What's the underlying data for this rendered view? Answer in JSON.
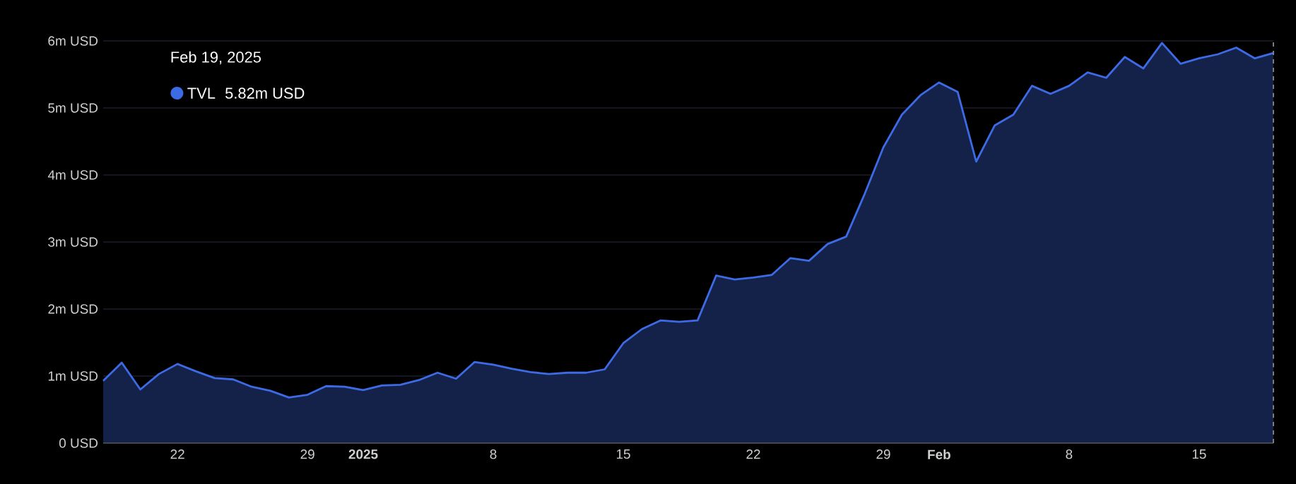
{
  "chart_data": {
    "type": "area",
    "x": [
      "2024-12-18",
      "2024-12-19",
      "2024-12-20",
      "2024-12-21",
      "2024-12-22",
      "2024-12-23",
      "2024-12-24",
      "2024-12-25",
      "2024-12-26",
      "2024-12-27",
      "2024-12-28",
      "2024-12-29",
      "2024-12-30",
      "2024-12-31",
      "2025-01-01",
      "2025-01-02",
      "2025-01-03",
      "2025-01-04",
      "2025-01-05",
      "2025-01-06",
      "2025-01-07",
      "2025-01-08",
      "2025-01-09",
      "2025-01-10",
      "2025-01-11",
      "2025-01-12",
      "2025-01-13",
      "2025-01-14",
      "2025-01-15",
      "2025-01-16",
      "2025-01-17",
      "2025-01-18",
      "2025-01-19",
      "2025-01-20",
      "2025-01-21",
      "2025-01-22",
      "2025-01-23",
      "2025-01-24",
      "2025-01-25",
      "2025-01-26",
      "2025-01-27",
      "2025-01-28",
      "2025-01-29",
      "2025-01-30",
      "2025-01-31",
      "2025-02-01",
      "2025-02-02",
      "2025-02-03",
      "2025-02-04",
      "2025-02-05",
      "2025-02-06",
      "2025-02-07",
      "2025-02-08",
      "2025-02-09",
      "2025-02-10",
      "2025-02-11",
      "2025-02-12",
      "2025-02-13",
      "2025-02-14",
      "2025-02-15",
      "2025-02-16",
      "2025-02-17",
      "2025-02-18",
      "2025-02-19"
    ],
    "series": [
      {
        "name": "TVL",
        "color": "#3d6be6",
        "values": [
          0.93,
          1.2,
          0.8,
          1.03,
          1.18,
          1.07,
          0.97,
          0.95,
          0.84,
          0.78,
          0.68,
          0.72,
          0.85,
          0.84,
          0.79,
          0.86,
          0.87,
          0.94,
          1.05,
          0.96,
          1.21,
          1.17,
          1.11,
          1.06,
          1.03,
          1.05,
          1.05,
          1.1,
          1.49,
          1.7,
          1.83,
          1.81,
          1.83,
          2.5,
          2.44,
          2.47,
          2.51,
          2.76,
          2.72,
          2.97,
          3.08,
          3.72,
          4.41,
          4.9,
          5.19,
          5.38,
          5.24,
          4.2,
          4.74,
          4.9,
          5.33,
          5.21,
          5.33,
          5.53,
          5.45,
          5.76,
          5.59,
          5.97,
          5.66,
          5.74,
          5.8,
          5.9,
          5.74,
          5.82
        ]
      }
    ],
    "xlim": [
      "2024-12-18",
      "2025-02-19"
    ],
    "xticks": [
      {
        "value": "2024-12-22",
        "label": "22"
      },
      {
        "value": "2024-12-29",
        "label": "29"
      },
      {
        "value": "2025-01-01",
        "label": "2025"
      },
      {
        "value": "2025-01-08",
        "label": "8"
      },
      {
        "value": "2025-01-15",
        "label": "15"
      },
      {
        "value": "2025-01-22",
        "label": "22"
      },
      {
        "value": "2025-01-29",
        "label": "29"
      },
      {
        "value": "2025-02-01",
        "label": "Feb"
      },
      {
        "value": "2025-02-08",
        "label": "8"
      },
      {
        "value": "2025-02-15",
        "label": "15"
      }
    ],
    "ylim": [
      0,
      6
    ],
    "yticks": [
      {
        "value": 0,
        "label": "0 USD"
      },
      {
        "value": 1,
        "label": "1m USD"
      },
      {
        "value": 2,
        "label": "2m USD"
      },
      {
        "value": 3,
        "label": "3m USD"
      },
      {
        "value": 4,
        "label": "4m USD"
      },
      {
        "value": 5,
        "label": "5m USD"
      },
      {
        "value": 6,
        "label": "6m USD"
      }
    ],
    "grid": "y",
    "legend": "top left",
    "annotations": [
      "Feb 19, 2025",
      "5.82m USD"
    ],
    "ref_lines": [
      {
        "axis": "x",
        "value": "2025-02-19",
        "color": "#8a8a8a",
        "line_style": "dashed"
      }
    ]
  }
}
